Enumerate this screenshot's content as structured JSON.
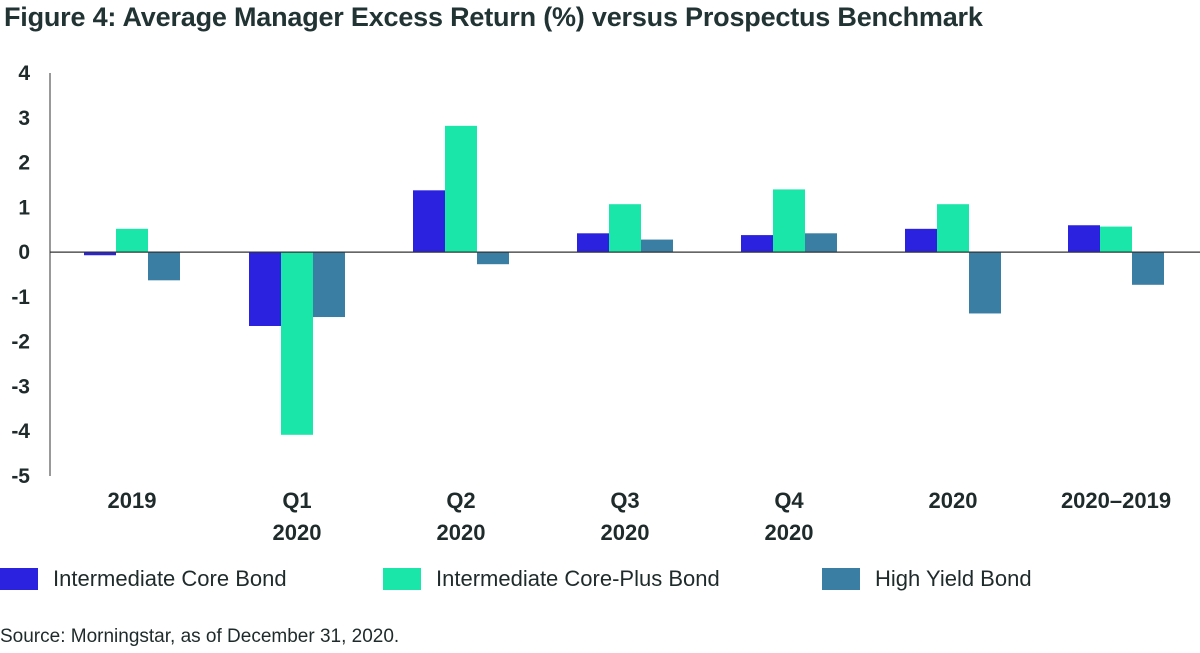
{
  "title": "Figure 4: Average Manager Excess Return (%) versus Prospectus Benchmark",
  "source": "Source: Morningstar, as of December 31, 2020.",
  "colors": {
    "Intermediate Core Bond": "#2b22e0",
    "Intermediate Core-Plus Bond": "#19e6a8",
    "High Yield Bond": "#3a7ea4"
  },
  "chart_data": {
    "type": "bar",
    "categories": [
      [
        "2019"
      ],
      [
        "Q1",
        "2020"
      ],
      [
        "Q2",
        "2020"
      ],
      [
        "Q3",
        "2020"
      ],
      [
        "Q4",
        "2020"
      ],
      [
        "2020"
      ],
      [
        "2020–2019"
      ]
    ],
    "series": [
      {
        "name": "Intermediate Core Bond",
        "values": [
          -0.07,
          -1.65,
          1.38,
          0.42,
          0.38,
          0.52,
          0.6
        ]
      },
      {
        "name": "Intermediate Core-Plus Bond",
        "values": [
          0.52,
          -4.08,
          2.82,
          1.07,
          1.4,
          1.07,
          0.57
        ]
      },
      {
        "name": "High Yield Bond",
        "values": [
          -0.63,
          -1.45,
          -0.27,
          0.28,
          0.42,
          -1.37,
          -0.73
        ]
      }
    ],
    "ylim": [
      -5,
      4
    ],
    "yticks": [
      "4",
      "3",
      "2",
      "1",
      "0",
      "-1",
      "-2",
      "-3",
      "-4",
      "-5"
    ],
    "xlabel": "",
    "ylabel": "",
    "legend": "bottom",
    "grid": false
  }
}
